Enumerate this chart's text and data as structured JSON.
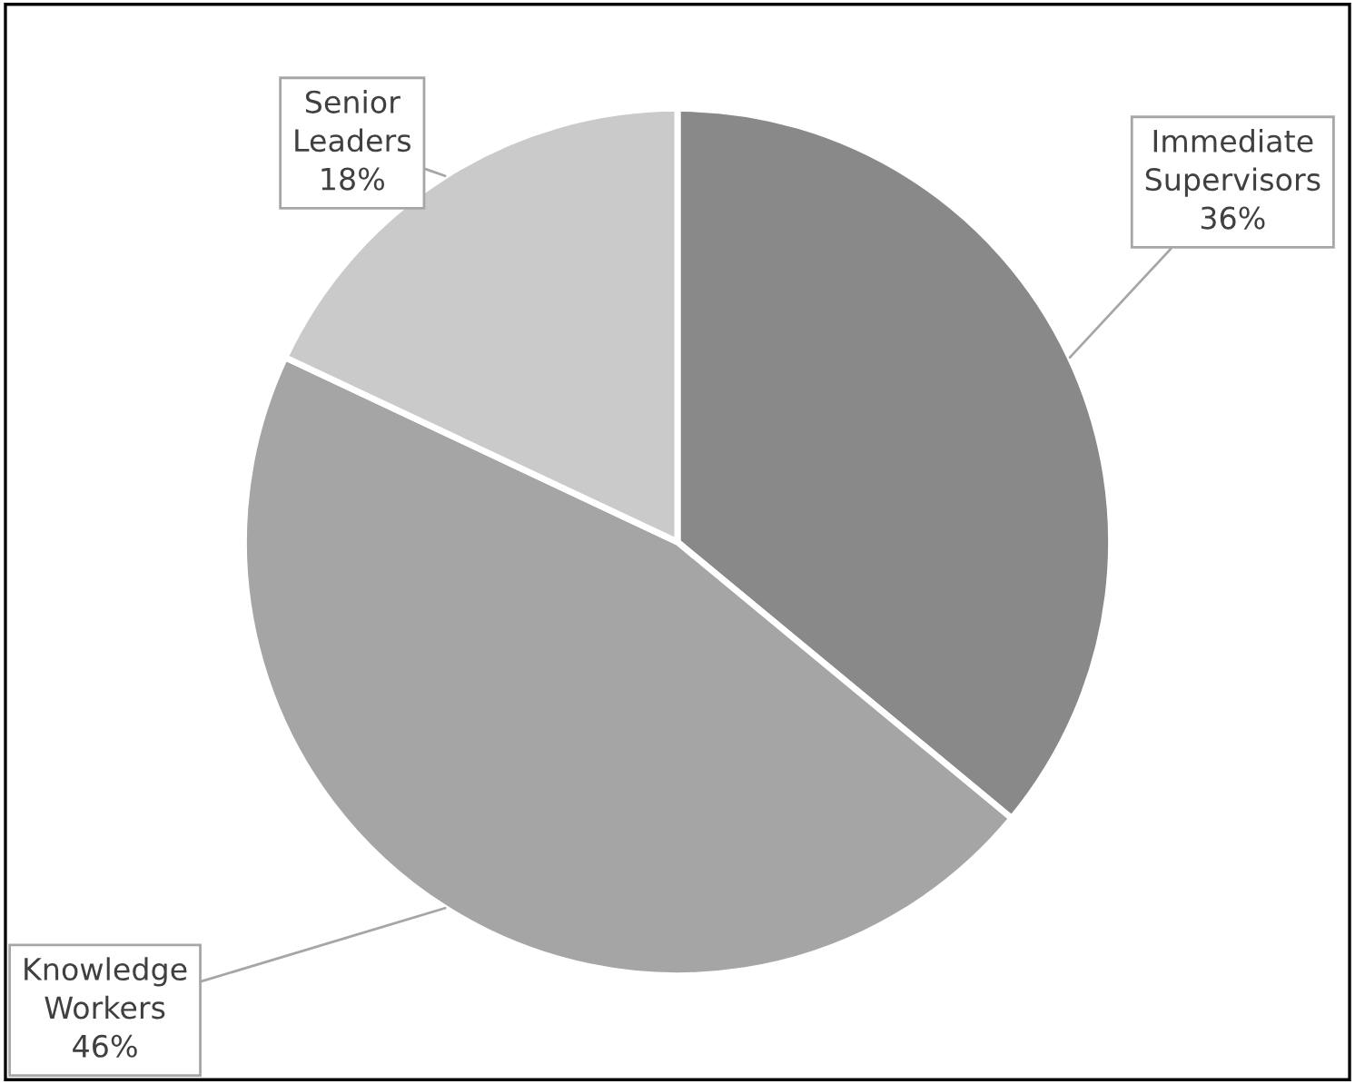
{
  "chart_data": {
    "type": "pie",
    "categories": [
      "Immediate Supervisors",
      "Knowledge Workers",
      "Senior Leaders"
    ],
    "values": [
      36,
      46,
      18
    ],
    "value_labels": [
      "36%",
      "46%",
      "18%"
    ],
    "colors": [
      "#898989",
      "#a5a5a5",
      "#cacaca"
    ],
    "legend": false
  }
}
